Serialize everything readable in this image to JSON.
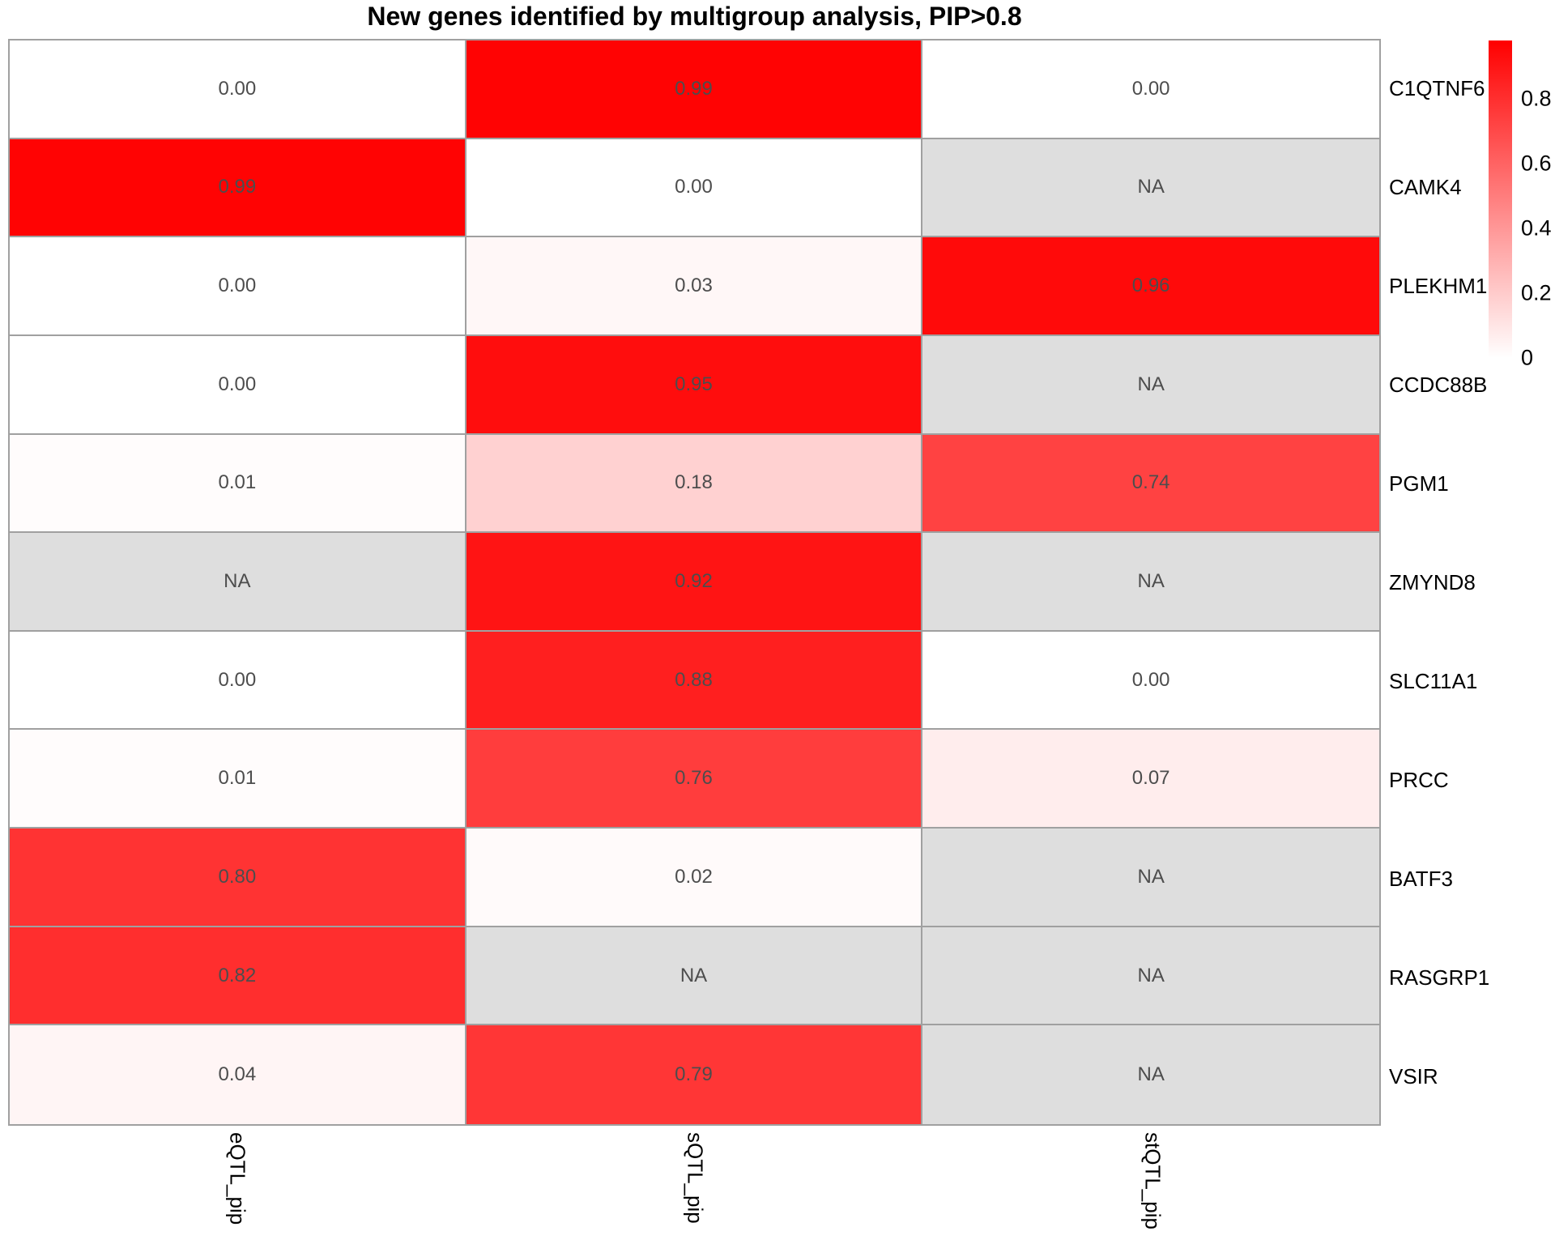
{
  "title": "New genes identified by multigroup analysis, PIP>0.8",
  "chart_data": {
    "type": "heatmap",
    "columns": [
      "eQTL_pip",
      "sQTL_pip",
      "stQTL_pip"
    ],
    "rows": [
      "C1QTNF6",
      "CAMK4",
      "PLEKHM1",
      "CCDC88B",
      "PGM1",
      "ZMYND8",
      "SLC11A1",
      "PRCC",
      "BATF3",
      "RASGRP1",
      "VSIR"
    ],
    "values": [
      [
        0.0,
        0.99,
        0.0
      ],
      [
        0.99,
        0.0,
        null
      ],
      [
        0.0,
        0.03,
        0.96
      ],
      [
        0.0,
        0.95,
        null
      ],
      [
        0.01,
        0.18,
        0.74
      ],
      [
        null,
        0.92,
        null
      ],
      [
        0.0,
        0.88,
        0.0
      ],
      [
        0.01,
        0.76,
        0.07
      ],
      [
        0.8,
        0.02,
        null
      ],
      [
        0.82,
        null,
        null
      ],
      [
        0.04,
        0.79,
        null
      ]
    ],
    "cell_labels": [
      [
        "0.00",
        "0.99",
        "0.00"
      ],
      [
        "0.99",
        "0.00",
        "NA"
      ],
      [
        "0.00",
        "0.03",
        "0.96"
      ],
      [
        "0.00",
        "0.95",
        "NA"
      ],
      [
        "0.01",
        "0.18",
        "0.74"
      ],
      [
        "NA",
        "0.92",
        "NA"
      ],
      [
        "0.00",
        "0.88",
        "0.00"
      ],
      [
        "0.01",
        "0.76",
        "0.07"
      ],
      [
        "0.80",
        "0.02",
        "NA"
      ],
      [
        "0.82",
        "NA",
        "NA"
      ],
      [
        "0.04",
        "0.79",
        "NA"
      ]
    ],
    "colorscale": {
      "min_value": 0,
      "max_value": 1,
      "min_color": "#FFFFFF",
      "max_color": "#FF0000",
      "na_color": "#DEDEDE",
      "border_color": "#A0A0A0",
      "cell_text_color": "#4D4D4D"
    },
    "legend": {
      "tick_labels": [
        "0.8",
        "0.6",
        "0.4",
        "0.2",
        "0"
      ],
      "tick_values": [
        0.8,
        0.6,
        0.4,
        0.2,
        0
      ],
      "top_value": 0.98,
      "position": "right",
      "grid": false
    }
  }
}
